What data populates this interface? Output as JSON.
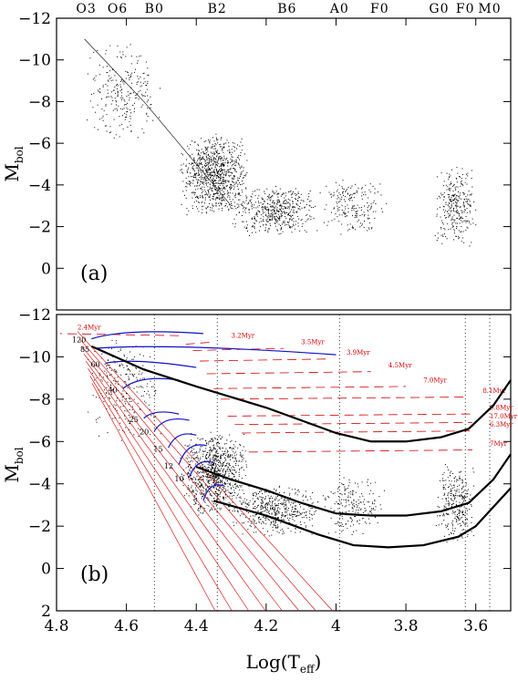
{
  "chart_data": [
    {
      "type": "scatter",
      "panel": "(a)",
      "x_axis": {
        "scale": "reversed",
        "xlim": [
          4.8,
          3.5
        ],
        "ticks": []
      },
      "y_axis": {
        "label": "M",
        "label_sub": "bol",
        "ylim": [
          2,
          -12
        ],
        "reversed": true,
        "ticks": [
          -12,
          -10,
          -8,
          -6,
          -4,
          -2,
          0
        ],
        "tick_labels": [
          "−12",
          "−10",
          "−8",
          "−6",
          "−4",
          "−2",
          "0"
        ]
      },
      "spectral_types": [
        {
          "label": "O3",
          "x": 4.715
        },
        {
          "label": "O6",
          "x": 4.625
        },
        {
          "label": "B0",
          "x": 4.52
        },
        {
          "label": "B2",
          "x": 4.34
        },
        {
          "label": "B6",
          "x": 4.14
        },
        {
          "label": "A0",
          "x": 3.99
        },
        {
          "label": "F0",
          "x": 3.875
        },
        {
          "label": "G0",
          "x": 3.705
        },
        {
          "label": "F0",
          "x": 3.63
        },
        {
          "label": "M0",
          "x": 3.56
        }
      ],
      "point_density": [
        {
          "x_range": [
            4.72,
            4.5
          ],
          "mbol_range": [
            -11,
            -6
          ],
          "count": 250
        },
        {
          "x_range": [
            4.45,
            4.25
          ],
          "mbol_range": [
            -6.5,
            -2.5
          ],
          "count": 900
        },
        {
          "x_range": [
            4.3,
            4.05
          ],
          "mbol_range": [
            -4,
            -1.5
          ],
          "count": 500
        },
        {
          "x_range": [
            4.05,
            3.85
          ],
          "mbol_range": [
            -4.5,
            -1.5
          ],
          "count": 200
        },
        {
          "x_range": [
            3.72,
            3.6
          ],
          "mbol_range": [
            -5,
            -1
          ],
          "count": 300
        }
      ],
      "zams_edge": [
        [
          4.72,
          -11
        ],
        [
          4.55,
          -8
        ],
        [
          4.45,
          -6
        ],
        [
          4.35,
          -4
        ],
        [
          4.3,
          -3
        ]
      ]
    },
    {
      "type": "line",
      "panel": "(b)",
      "x_axis": {
        "label": "Log(T",
        "label_sub": "eff",
        "label_close": ")",
        "xlim": [
          4.8,
          3.5
        ],
        "reversed": true,
        "ticks": [
          4.8,
          4.6,
          4.4,
          4.2,
          4.0,
          3.8,
          3.6
        ],
        "tick_labels": [
          "4.8",
          "4.6",
          "4.4",
          "4.2",
          "4",
          "3.8",
          "3.6"
        ]
      },
      "y_axis": {
        "label": "M",
        "label_sub": "bol",
        "ylim": [
          2,
          -12
        ],
        "reversed": true,
        "ticks": [
          -12,
          -10,
          -8,
          -6,
          -4,
          -2,
          0,
          2
        ],
        "tick_labels": [
          "−12",
          "−10",
          "−8",
          "−6",
          "−4",
          "−2",
          "0",
          "2"
        ]
      },
      "vertical_dotted_lines": [
        4.52,
        4.34,
        3.99,
        3.63,
        3.56
      ],
      "evolutionary_tracks": [
        {
          "mass_label": "120",
          "zams": [
            4.7,
            -10.85
          ],
          "end": [
            4.38,
            -11.1
          ]
        },
        {
          "mass_label": "85",
          "zams": [
            4.69,
            -10.4
          ],
          "end": [
            4.0,
            -10.1
          ]
        },
        {
          "mass_label": "60",
          "zams": [
            4.66,
            -9.7
          ],
          "end": [
            4.4,
            -9.5
          ]
        },
        {
          "mass_label": "40",
          "zams": [
            4.61,
            -8.5
          ],
          "end": [
            4.45,
            -8.9
          ]
        },
        {
          "mass_label": "25",
          "zams": [
            4.55,
            -7.1
          ],
          "end": [
            4.45,
            -7.3
          ]
        },
        {
          "mass_label": "20",
          "zams": [
            4.52,
            -6.5
          ],
          "end": [
            4.42,
            -7.0
          ]
        },
        {
          "mass_label": "15",
          "zams": [
            4.48,
            -5.7
          ],
          "end": [
            4.4,
            -6.3
          ]
        },
        {
          "mass_label": "12",
          "zams": [
            4.45,
            -4.9
          ],
          "end": [
            4.37,
            -5.8
          ]
        },
        {
          "mass_label": "10",
          "zams": [
            4.42,
            -4.3
          ],
          "end": [
            4.35,
            -5.0
          ]
        },
        {
          "mass_label": "7",
          "zams": [
            4.38,
            -3.2
          ],
          "end": [
            4.32,
            -3.9
          ]
        }
      ],
      "isochrone_labels": [
        {
          "label": "2.4Myr",
          "x": 4.74,
          "y": -11.3
        },
        {
          "label": "3.2Myr",
          "x": 4.3,
          "y": -10.9
        },
        {
          "label": "3.5Myr",
          "x": 4.1,
          "y": -10.6
        },
        {
          "label": "3.9Myr",
          "x": 3.97,
          "y": -10.1
        },
        {
          "label": "4.5Myr",
          "x": 3.85,
          "y": -9.5
        },
        {
          "label": "7.0Myr",
          "x": 3.75,
          "y": -8.8
        },
        {
          "label": "8.1Myr",
          "x": 3.58,
          "y": -8.3
        },
        {
          "label": "9.8Myr",
          "x": 3.56,
          "y": -7.5
        },
        {
          "label": "17.0Myr",
          "x": 3.56,
          "y": -7.1
        },
        {
          "label": "6.3Myr",
          "x": 3.56,
          "y": -6.7
        },
        {
          "label": "7Myr",
          "x": 3.56,
          "y": -5.8
        }
      ],
      "black_curves": [
        {
          "points": [
            [
              4.7,
              -10.5
            ],
            [
              4.55,
              -9.4
            ],
            [
              4.4,
              -8.6
            ],
            [
              4.2,
              -7.6
            ],
            [
              4.0,
              -6.4
            ],
            [
              3.9,
              -6.0
            ],
            [
              3.8,
              -6.0
            ],
            [
              3.7,
              -6.2
            ],
            [
              3.62,
              -6.6
            ],
            [
              3.55,
              -7.7
            ],
            [
              3.5,
              -8.9
            ]
          ]
        },
        {
          "points": [
            [
              4.4,
              -4.8
            ],
            [
              4.3,
              -4.2
            ],
            [
              4.2,
              -3.7
            ],
            [
              4.1,
              -3.1
            ],
            [
              4.0,
              -2.6
            ],
            [
              3.9,
              -2.5
            ],
            [
              3.8,
              -2.5
            ],
            [
              3.7,
              -2.7
            ],
            [
              3.62,
              -3.1
            ],
            [
              3.55,
              -4.2
            ],
            [
              3.5,
              -5.4
            ]
          ]
        },
        {
          "points": [
            [
              4.35,
              -3.2
            ],
            [
              4.2,
              -2.5
            ],
            [
              4.05,
              -1.6
            ],
            [
              3.95,
              -1.1
            ],
            [
              3.85,
              -1.0
            ],
            [
              3.75,
              -1.1
            ],
            [
              3.65,
              -1.5
            ],
            [
              3.6,
              -2.0
            ],
            [
              3.55,
              -2.9
            ],
            [
              3.5,
              -3.8
            ]
          ]
        }
      ],
      "zams_red_lines_end": [
        [
          4.74,
          -11.2
        ],
        [
          4.01,
          2.0
        ]
      ]
    }
  ],
  "labels": {
    "panel_a": "(a)",
    "panel_b": "(b)",
    "ylabel_main": "M",
    "ylabel_sub": "bol",
    "xlabel_main": "Log(T",
    "xlabel_sub": "eff",
    "xlabel_close": ")"
  },
  "colors": {
    "points": "#000000",
    "tracks": "#1010c8",
    "isochrones": "#d40000",
    "axes": "#000000"
  }
}
